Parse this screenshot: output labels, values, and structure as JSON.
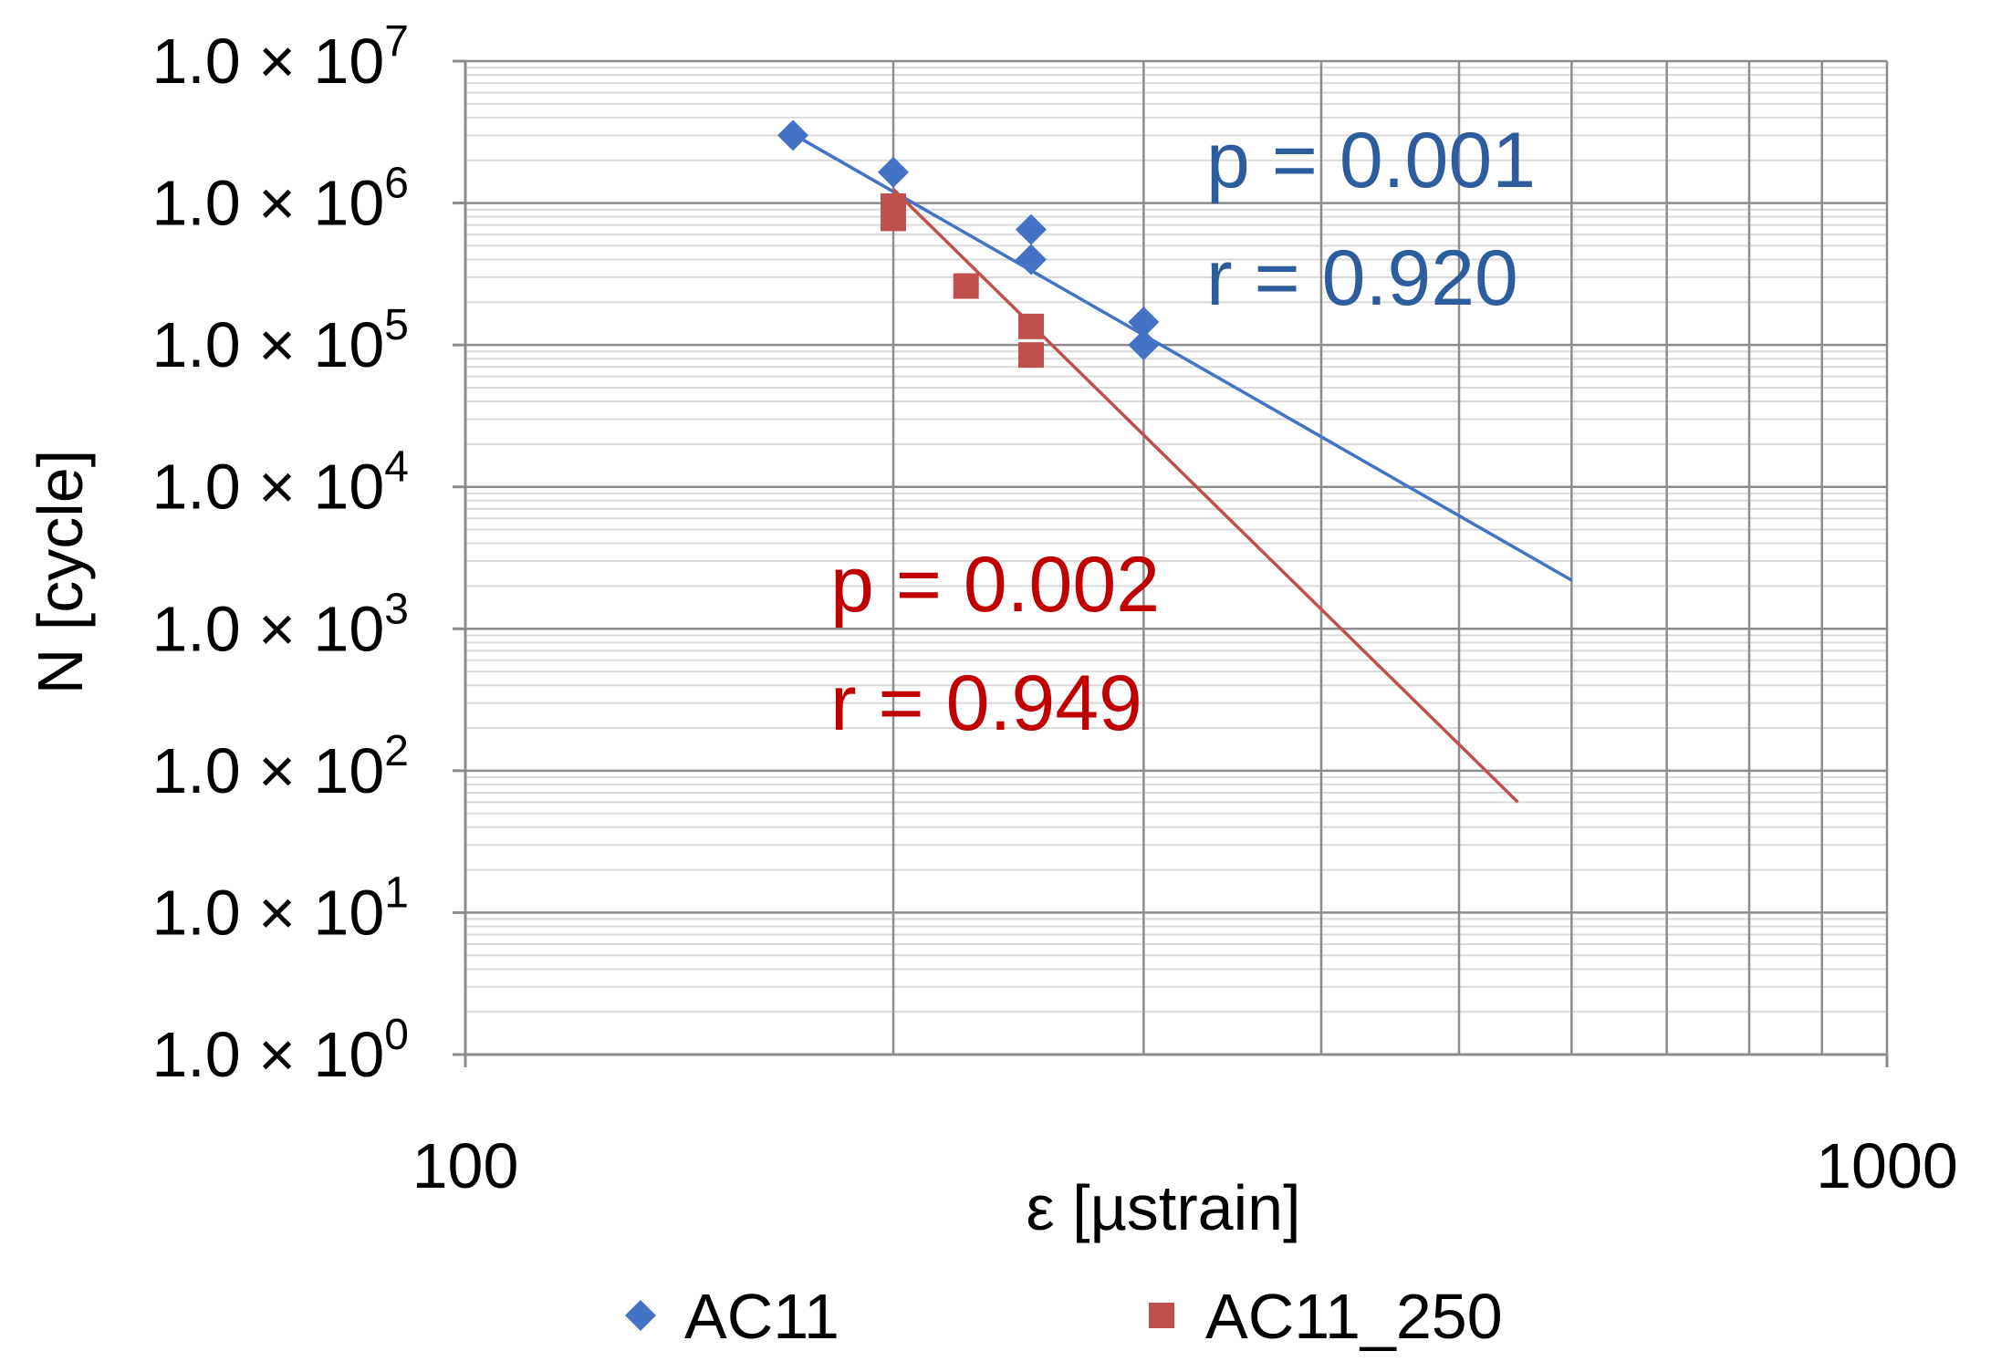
{
  "chart_data": {
    "type": "scatter",
    "xlabel": "ε [µstrain]",
    "ylabel": "N [cycle]",
    "x_scale": "log",
    "y_scale": "log",
    "xlim": [
      100,
      1000
    ],
    "ylim": [
      1,
      10000000
    ],
    "x_tick_labels": [
      "100",
      "1000"
    ],
    "y_ticks": [
      {
        "mantissa": "1.0 × 10",
        "exponent": "0",
        "value": 1
      },
      {
        "mantissa": "1.0 × 10",
        "exponent": "1",
        "value": 10
      },
      {
        "mantissa": "1.0 × 10",
        "exponent": "2",
        "value": 100
      },
      {
        "mantissa": "1.0 × 10",
        "exponent": "3",
        "value": 1000
      },
      {
        "mantissa": "1.0 × 10",
        "exponent": "4",
        "value": 10000
      },
      {
        "mantissa": "1.0 × 10",
        "exponent": "5",
        "value": 100000
      },
      {
        "mantissa": "1.0 × 10",
        "exponent": "6",
        "value": 1000000
      },
      {
        "mantissa": "1.0 × 10",
        "exponent": "7",
        "value": 10000000
      }
    ],
    "grid": true,
    "legend_position": "bottom",
    "series": [
      {
        "name": "AC11",
        "color": "#4472c4",
        "marker": "diamond",
        "points": [
          {
            "x": 170,
            "y": 3000000
          },
          {
            "x": 200,
            "y": 1650000
          },
          {
            "x": 250,
            "y": 650000
          },
          {
            "x": 250,
            "y": 400000
          },
          {
            "x": 300,
            "y": 145000
          },
          {
            "x": 300,
            "y": 100000
          }
        ],
        "trendline": {
          "x": [
            170,
            600
          ],
          "y": [
            3060000,
            2200
          ]
        },
        "annotation": {
          "p": "p = 0.001",
          "r": "r = 0.920"
        }
      },
      {
        "name": "AC11_250",
        "color": "#c0504d",
        "marker": "square",
        "points": [
          {
            "x": 200,
            "y": 950000
          },
          {
            "x": 200,
            "y": 780000
          },
          {
            "x": 225,
            "y": 260000
          },
          {
            "x": 250,
            "y": 135000
          },
          {
            "x": 250,
            "y": 85000
          }
        ],
        "trendline": {
          "x": [
            200,
            550
          ],
          "y": [
            1250000,
            60
          ]
        },
        "annotation": {
          "p": "p = 0.002",
          "r": "r = 0.949"
        }
      }
    ]
  }
}
